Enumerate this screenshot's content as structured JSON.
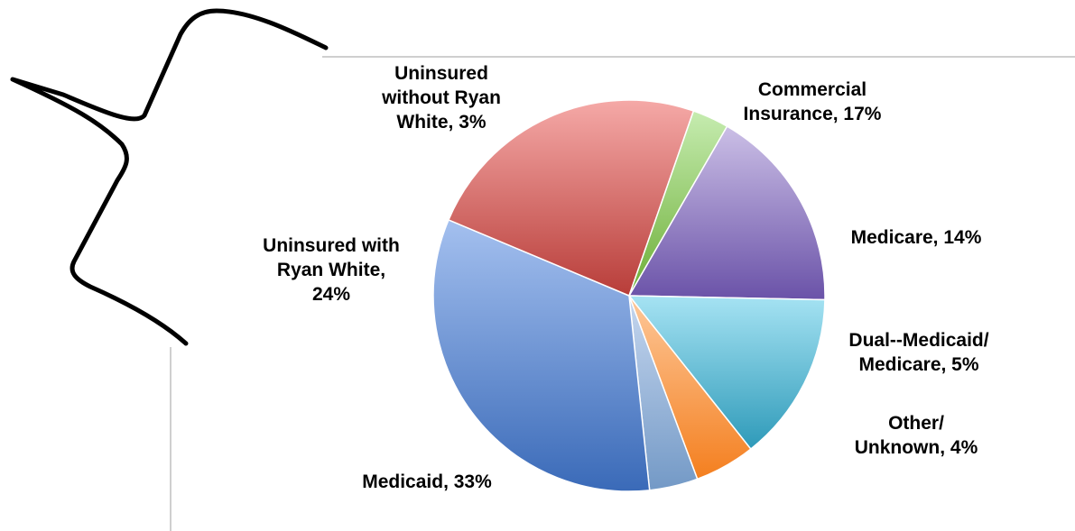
{
  "chart_data": {
    "type": "pie",
    "title": "",
    "slices": [
      {
        "label_lines": [
          "Commercial",
          "Insurance, 17%"
        ],
        "name": "Commercial Insurance",
        "value": 17,
        "color": "#8e7cc3",
        "color_light": "#cbbfe6",
        "color_dark": "#6a52a8"
      },
      {
        "label_lines": [
          "Medicare, 14%"
        ],
        "name": "Medicare",
        "value": 14,
        "color": "#4bb4d2",
        "color_light": "#a6e3f3",
        "color_dark": "#2e9ab9"
      },
      {
        "label_lines": [
          "Dual--Medicaid/",
          "Medicare, 5%"
        ],
        "name": "Dual--Medicaid/Medicare",
        "value": 5,
        "color": "#f79646",
        "color_light": "#fdc89a",
        "color_dark": "#f47f1f"
      },
      {
        "label_lines": [
          "Other/",
          "Unknown, 4%"
        ],
        "name": "Other/Unknown",
        "value": 4,
        "color": "#95b3d7",
        "color_light": "#c6d7ef",
        "color_dark": "#7399c6"
      },
      {
        "label_lines": [
          "Medicaid, 33%"
        ],
        "name": "Medicaid",
        "value": 33,
        "color": "#5b86cf",
        "color_light": "#a4c0ef",
        "color_dark": "#3a6ab8"
      },
      {
        "label_lines": [
          "Uninsured with",
          "Ryan White,",
          "24%"
        ],
        "name": "Uninsured with Ryan White",
        "value": 24,
        "color": "#d9625f",
        "color_light": "#f5a9a7",
        "color_dark": "#b83d39"
      },
      {
        "label_lines": [
          "Uninsured",
          "without Ryan",
          "White, 3%"
        ],
        "name": "Uninsured without Ryan White",
        "value": 3,
        "color": "#92d050",
        "color_light": "#c6ecb0",
        "color_dark": "#6cae36"
      }
    ],
    "start_angle_deg": 30,
    "direction": "clockwise",
    "legend": "none",
    "labels": "outside"
  }
}
